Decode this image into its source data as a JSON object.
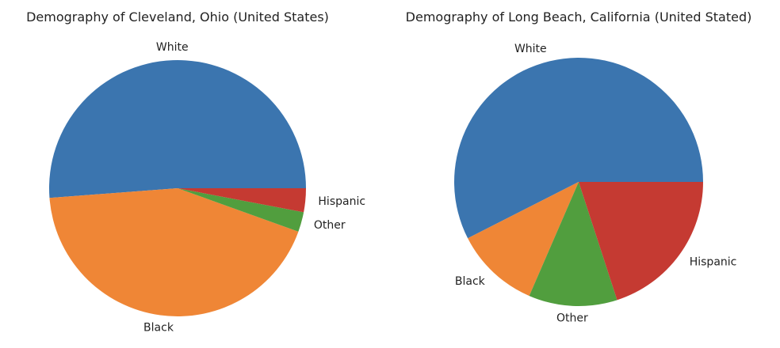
{
  "chart_data": [
    {
      "type": "pie",
      "title": "Demography of Cleveland, Ohio (United States)",
      "start_angle_deg": 0,
      "direction": "counterclockwise",
      "slices": [
        {
          "label": "White",
          "value": 51.2,
          "color": "#3b75af"
        },
        {
          "label": "Black",
          "value": 43.3,
          "color": "#ef8636"
        },
        {
          "label": "Other",
          "value": 2.5,
          "color": "#519e3e"
        },
        {
          "label": "Hispanic",
          "value": 3.0,
          "color": "#c53a32"
        }
      ]
    },
    {
      "type": "pie",
      "title": "Demography of Long Beach, California (United Stated)",
      "start_angle_deg": 0,
      "direction": "counterclockwise",
      "slices": [
        {
          "label": "White",
          "value": 57.5,
          "color": "#3b75af"
        },
        {
          "label": "Black",
          "value": 11.0,
          "color": "#ef8636"
        },
        {
          "label": "Other",
          "value": 11.5,
          "color": "#519e3e"
        },
        {
          "label": "Hispanic",
          "value": 20.0,
          "color": "#c53a32"
        }
      ]
    }
  ]
}
